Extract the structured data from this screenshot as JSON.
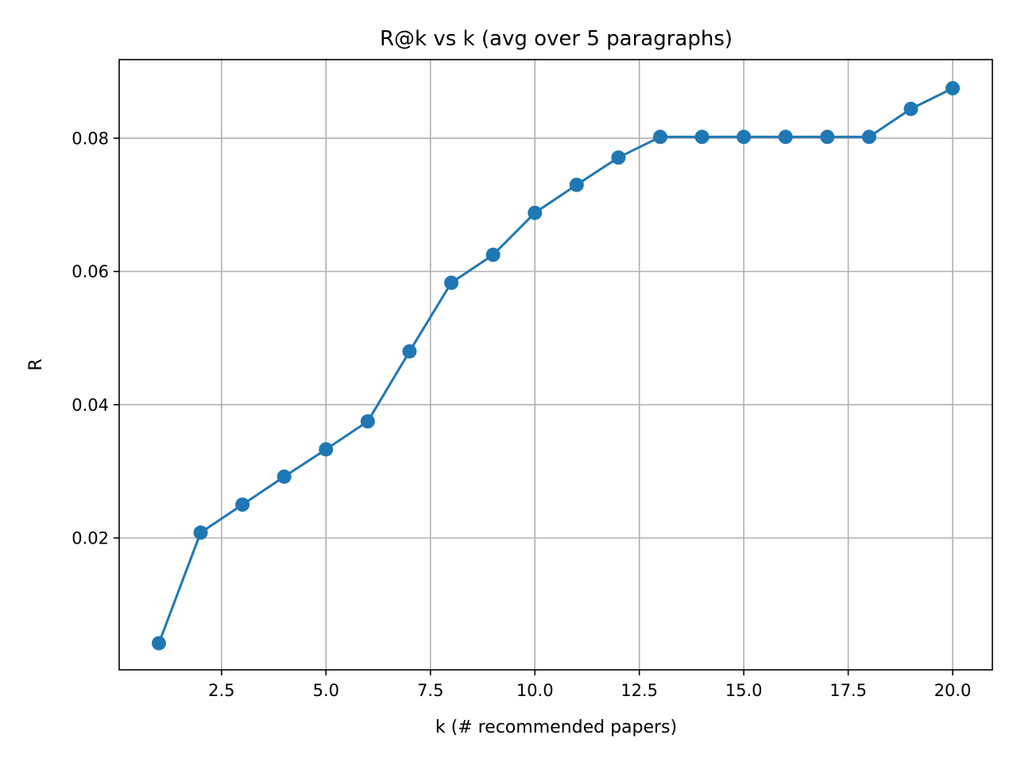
{
  "chart_data": {
    "type": "line",
    "title": "R@k vs k  (avg over 5 paragraphs)",
    "xlabel": "k (# recommended papers)",
    "ylabel": "R",
    "xlim": [
      0.05,
      20.95
    ],
    "ylim": [
      0.0002,
      0.0918
    ],
    "x_ticks": [
      2.5,
      5.0,
      7.5,
      10.0,
      12.5,
      15.0,
      17.5,
      20.0
    ],
    "x_tick_labels": [
      "2.5",
      "5.0",
      "7.5",
      "10.0",
      "12.5",
      "15.0",
      "17.5",
      "20.0"
    ],
    "y_ticks": [
      0.02,
      0.04,
      0.06,
      0.08
    ],
    "y_tick_labels": [
      "0.02",
      "0.04",
      "0.06",
      "0.08"
    ],
    "grid": true,
    "marker": "circle",
    "series": [
      {
        "color": "#1f77b4",
        "x": [
          1,
          2,
          3,
          4,
          5,
          6,
          7,
          8,
          9,
          10,
          11,
          12,
          13,
          14,
          15,
          16,
          17,
          18,
          19,
          20
        ],
        "y": [
          0.0042,
          0.0208,
          0.025,
          0.0292,
          0.0333,
          0.0375,
          0.048,
          0.0583,
          0.0625,
          0.0688,
          0.073,
          0.0771,
          0.0802,
          0.0802,
          0.0802,
          0.0802,
          0.0802,
          0.0802,
          0.0844,
          0.0875
        ]
      }
    ]
  }
}
